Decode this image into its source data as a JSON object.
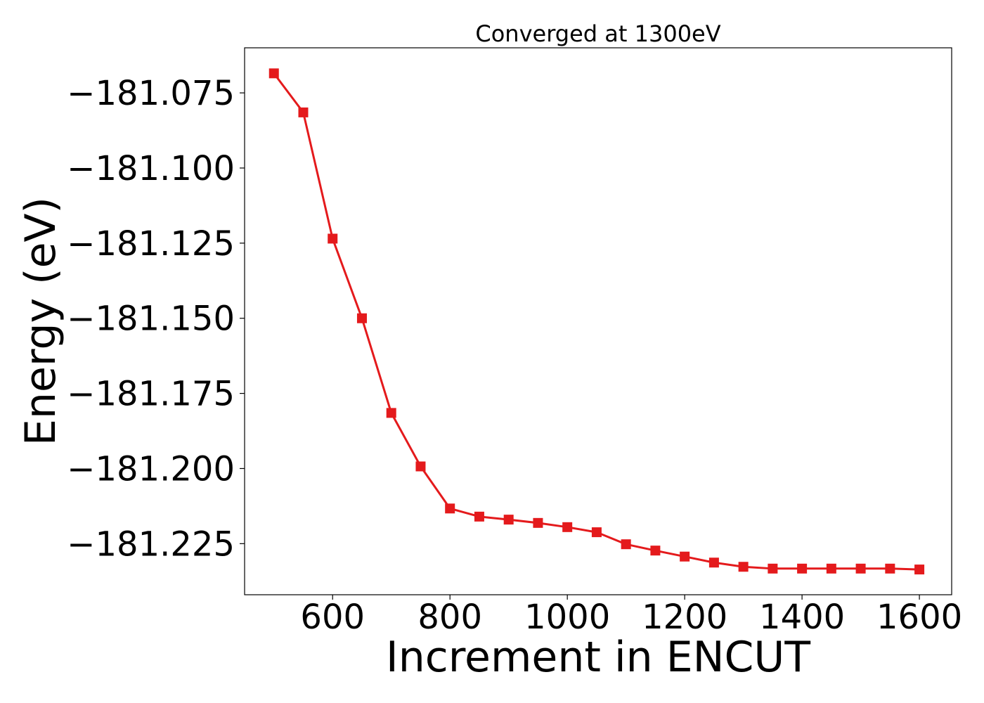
{
  "chart_data": {
    "type": "line",
    "title": "Converged at 1300eV",
    "xlabel": "Increment in ENCUT",
    "ylabel": "Energy (eV)",
    "x": [
      500,
      550,
      600,
      650,
      700,
      750,
      800,
      850,
      900,
      950,
      1000,
      1050,
      1100,
      1150,
      1200,
      1250,
      1300,
      1350,
      1400,
      1450,
      1500,
      1550,
      1600
    ],
    "series": [
      {
        "values": [
          -181.0685,
          -181.0815,
          -181.1235,
          -181.15,
          -181.1815,
          -181.1993,
          -181.2133,
          -181.216,
          -181.217,
          -181.2181,
          -181.2195,
          -181.2212,
          -181.2252,
          -181.2273,
          -181.2293,
          -181.2313,
          -181.2327,
          -181.2333,
          -181.2333,
          -181.2333,
          -181.2333,
          -181.2333,
          -181.2336
        ],
        "color": "#e41a1c",
        "marker": "square"
      }
    ],
    "xlim": [
      450,
      1655
    ],
    "ylim": [
      -181.242,
      -181.06
    ],
    "xticks": [
      600,
      800,
      1000,
      1200,
      1400,
      1600
    ],
    "xtick_labels": [
      "600",
      "800",
      "1000",
      "1200",
      "1400",
      "1600"
    ],
    "yticks": [
      -181.075,
      -181.1,
      -181.125,
      -181.15,
      -181.175,
      -181.2,
      -181.225
    ],
    "ytick_labels": [
      "−181.075",
      "−181.100",
      "−181.125",
      "−181.150",
      "−181.175",
      "−181.200",
      "−181.225"
    ],
    "grid": false,
    "legend": false
  }
}
